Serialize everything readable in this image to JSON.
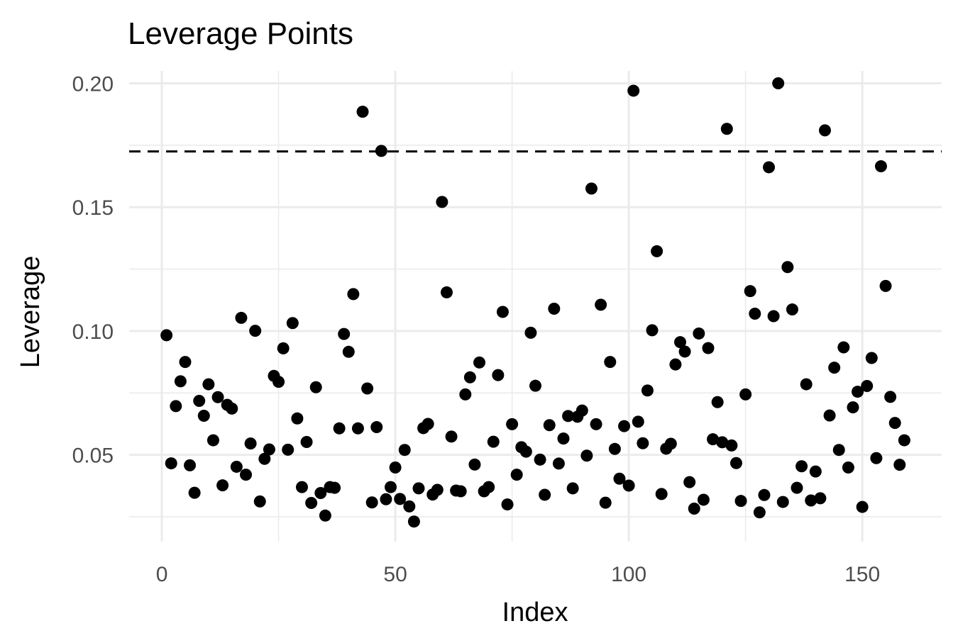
{
  "chart_data": {
    "type": "scatter",
    "title": "Leverage Points",
    "xlabel": "Index",
    "ylabel": "Leverage",
    "xlim": [
      -7,
      167
    ],
    "ylim": [
      0.015,
      0.205
    ],
    "x_ticks": [
      0,
      50,
      100,
      150
    ],
    "x_tick_labels": [
      "0",
      "50",
      "100",
      "150"
    ],
    "x_minor_ticks": [
      25,
      75,
      125
    ],
    "y_ticks": [
      0.05,
      0.1,
      0.15,
      0.2
    ],
    "y_tick_labels": [
      "0.05",
      "0.10",
      "0.15",
      "0.20"
    ],
    "y_minor_ticks": [
      0.025,
      0.075,
      0.125,
      0.175
    ],
    "grid": true,
    "reference_line": {
      "y": 0.1725,
      "style": "dashed",
      "color": "#000000"
    },
    "point_color": "#000000",
    "points": [
      [
        1,
        0.0983
      ],
      [
        2,
        0.0466
      ],
      [
        3,
        0.0697
      ],
      [
        4,
        0.0797
      ],
      [
        5,
        0.0875
      ],
      [
        6,
        0.0458
      ],
      [
        7,
        0.0347
      ],
      [
        8,
        0.0718
      ],
      [
        9,
        0.0658
      ],
      [
        10,
        0.0785
      ],
      [
        11,
        0.0559
      ],
      [
        12,
        0.0733
      ],
      [
        13,
        0.0377
      ],
      [
        14,
        0.0702
      ],
      [
        15,
        0.0687
      ],
      [
        16,
        0.0452
      ],
      [
        17,
        0.1053
      ],
      [
        18,
        0.042
      ],
      [
        19,
        0.0546
      ],
      [
        20,
        0.1001
      ],
      [
        21,
        0.0312
      ],
      [
        22,
        0.0484
      ],
      [
        23,
        0.0522
      ],
      [
        24,
        0.0819
      ],
      [
        25,
        0.0795
      ],
      [
        26,
        0.093
      ],
      [
        27,
        0.0521
      ],
      [
        28,
        0.1032
      ],
      [
        29,
        0.0647
      ],
      [
        30,
        0.037
      ],
      [
        31,
        0.0552
      ],
      [
        32,
        0.0306
      ],
      [
        33,
        0.0773
      ],
      [
        34,
        0.0346
      ],
      [
        35,
        0.0255
      ],
      [
        36,
        0.037
      ],
      [
        37,
        0.0367
      ],
      [
        38,
        0.0607
      ],
      [
        39,
        0.0988
      ],
      [
        40,
        0.0916
      ],
      [
        41,
        0.1149
      ],
      [
        42,
        0.0607
      ],
      [
        43,
        0.1885
      ],
      [
        44,
        0.0768
      ],
      [
        45,
        0.0308
      ],
      [
        46,
        0.0612
      ],
      [
        47,
        0.1727
      ],
      [
        48,
        0.0321
      ],
      [
        49,
        0.037
      ],
      [
        50,
        0.0449
      ],
      [
        51,
        0.0322
      ],
      [
        52,
        0.052
      ],
      [
        53,
        0.0292
      ],
      [
        54,
        0.0231
      ],
      [
        55,
        0.0365
      ],
      [
        56,
        0.0608
      ],
      [
        57,
        0.0625
      ],
      [
        58,
        0.034
      ],
      [
        59,
        0.0359
      ],
      [
        60,
        0.1521
      ],
      [
        61,
        0.1156
      ],
      [
        62,
        0.0574
      ],
      [
        63,
        0.0356
      ],
      [
        64,
        0.0353
      ],
      [
        65,
        0.0744
      ],
      [
        66,
        0.0813
      ],
      [
        67,
        0.0461
      ],
      [
        68,
        0.0873
      ],
      [
        69,
        0.0353
      ],
      [
        70,
        0.037
      ],
      [
        71,
        0.0553
      ],
      [
        72,
        0.0822
      ],
      [
        73,
        0.1077
      ],
      [
        74,
        0.03
      ],
      [
        75,
        0.0624
      ],
      [
        76,
        0.042
      ],
      [
        77,
        0.0531
      ],
      [
        78,
        0.0513
      ],
      [
        79,
        0.0993
      ],
      [
        80,
        0.0779
      ],
      [
        81,
        0.0481
      ],
      [
        82,
        0.0339
      ],
      [
        83,
        0.062
      ],
      [
        84,
        0.109
      ],
      [
        85,
        0.0465
      ],
      [
        86,
        0.0566
      ],
      [
        87,
        0.0657
      ],
      [
        88,
        0.0365
      ],
      [
        89,
        0.0654
      ],
      [
        90,
        0.0679
      ],
      [
        91,
        0.0497
      ],
      [
        92,
        0.1575
      ],
      [
        93,
        0.0624
      ],
      [
        94,
        0.1106
      ],
      [
        95,
        0.0307
      ],
      [
        96,
        0.0875
      ],
      [
        97,
        0.0524
      ],
      [
        98,
        0.0404
      ],
      [
        99,
        0.0616
      ],
      [
        100,
        0.0376
      ],
      [
        101,
        0.197
      ],
      [
        102,
        0.0634
      ],
      [
        103,
        0.0547
      ],
      [
        104,
        0.076
      ],
      [
        105,
        0.1003
      ],
      [
        106,
        0.1322
      ],
      [
        107,
        0.0342
      ],
      [
        108,
        0.0525
      ],
      [
        109,
        0.0545
      ],
      [
        110,
        0.0865
      ],
      [
        111,
        0.0955
      ],
      [
        112,
        0.0917
      ],
      [
        113,
        0.039
      ],
      [
        114,
        0.0283
      ],
      [
        115,
        0.099
      ],
      [
        116,
        0.0319
      ],
      [
        117,
        0.0931
      ],
      [
        118,
        0.0563
      ],
      [
        119,
        0.0713
      ],
      [
        120,
        0.0551
      ],
      [
        121,
        0.1816
      ],
      [
        122,
        0.0538
      ],
      [
        123,
        0.0467
      ],
      [
        124,
        0.0314
      ],
      [
        125,
        0.0744
      ],
      [
        126,
        0.1161
      ],
      [
        127,
        0.107
      ],
      [
        128,
        0.0268
      ],
      [
        129,
        0.0338
      ],
      [
        130,
        0.1661
      ],
      [
        131,
        0.106
      ],
      [
        132,
        0.2
      ],
      [
        133,
        0.031
      ],
      [
        134,
        0.1258
      ],
      [
        135,
        0.1087
      ],
      [
        136,
        0.0367
      ],
      [
        137,
        0.0454
      ],
      [
        138,
        0.0785
      ],
      [
        139,
        0.0316
      ],
      [
        140,
        0.0433
      ],
      [
        141,
        0.0325
      ],
      [
        142,
        0.181
      ],
      [
        143,
        0.0659
      ],
      [
        144,
        0.0852
      ],
      [
        145,
        0.052
      ],
      [
        146,
        0.0934
      ],
      [
        147,
        0.0449
      ],
      [
        148,
        0.0692
      ],
      [
        149,
        0.0755
      ],
      [
        150,
        0.029
      ],
      [
        151,
        0.0778
      ],
      [
        152,
        0.0891
      ],
      [
        153,
        0.0487
      ],
      [
        154,
        0.1665
      ],
      [
        155,
        0.1182
      ],
      [
        156,
        0.0734
      ],
      [
        157,
        0.0629
      ],
      [
        158,
        0.046
      ],
      [
        159,
        0.0559
      ]
    ]
  }
}
